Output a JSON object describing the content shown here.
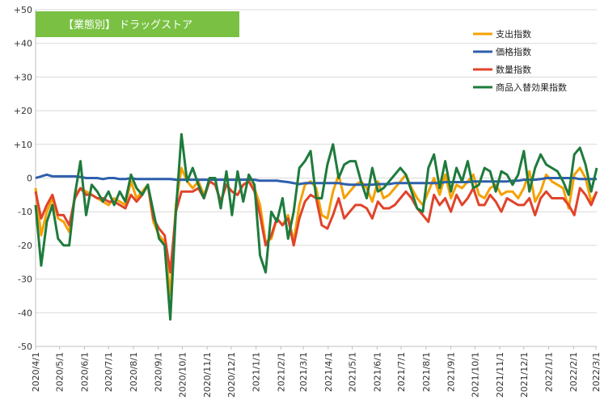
{
  "chart_data": {
    "type": "line",
    "title": "【業態別】 ドラッグストア",
    "title_bg_color": "#7AC143",
    "ylim": [
      -50,
      50
    ],
    "yticks": [
      50,
      40,
      30,
      20,
      10,
      0,
      -10,
      -20,
      -30,
      -40,
      -50
    ],
    "ytick_labels": [
      "+50",
      "+40",
      "+30",
      "+20",
      "+10",
      "0",
      "-10",
      "-20",
      "-30",
      "-40",
      "-50"
    ],
    "x_start": "2020-04-01",
    "x_interval_days": 7,
    "x_tick_labels": [
      "2020/4/1",
      "2020/5/1",
      "2020/6/1",
      "2020/7/1",
      "2020/8/1",
      "2020/9/1",
      "2020/10/1",
      "2020/11/1",
      "2020/12/1",
      "2021/1/1",
      "2021/2/1",
      "2021/3/1",
      "2021/4/1",
      "2021/5/1",
      "2021/6/1",
      "2021/7/1",
      "2021/8/1",
      "2021/9/1",
      "2021/10/1",
      "2021/11/1",
      "2021/12/1",
      "2022/1/1",
      "2022/2/1",
      "2022/3/1"
    ],
    "grid": true,
    "legend_position": "top-right",
    "series": [
      {
        "name": "支出指数",
        "color": "#F5A100",
        "values": [
          -3,
          -17,
          -10,
          -6,
          -12,
          -13,
          -16,
          -5,
          -3,
          -4,
          -5,
          -6,
          -7,
          -8,
          -6,
          -7,
          -8,
          -1,
          -6,
          -4,
          -2,
          -13,
          -17,
          -19,
          -35,
          -8,
          3,
          -1,
          -3,
          -1,
          -5,
          -1,
          -2,
          -7,
          -2,
          -4,
          -5,
          -2,
          -1,
          -3,
          -8,
          -19,
          -18,
          -12,
          -14,
          -11,
          -19,
          -8,
          -2,
          -1,
          -3,
          -11,
          -12,
          -4,
          1,
          -6,
          -4,
          -2,
          -1,
          -3,
          -7,
          -1,
          -6,
          -5,
          -3,
          -1,
          1,
          -3,
          -6,
          -8,
          -4,
          0,
          -5,
          1,
          -6,
          -2,
          -3,
          -1,
          1,
          -5,
          -6,
          -3,
          -2,
          -5,
          -4,
          -4,
          -6,
          -3,
          2,
          -7,
          -4,
          1,
          -1,
          -2,
          -3,
          -9,
          1,
          3,
          0,
          -7,
          -4
        ]
      },
      {
        "name": "価格指数",
        "color": "#2E5FAD",
        "values": [
          0,
          0.5,
          1,
          0.5,
          0.5,
          0.5,
          0.5,
          0.5,
          0.3,
          0,
          0,
          0,
          -0.3,
          0,
          0,
          -0.3,
          -0.3,
          0,
          -0.3,
          -0.3,
          -0.3,
          -0.3,
          -0.3,
          -0.3,
          -0.3,
          -0.5,
          -0.5,
          -0.5,
          -0.5,
          -0.5,
          -0.5,
          -0.5,
          -0.5,
          -0.5,
          -0.5,
          -0.5,
          -0.5,
          -0.5,
          -0.5,
          -0.5,
          -0.8,
          -0.8,
          -0.8,
          -0.8,
          -1,
          -1.2,
          -1.5,
          -1.8,
          -1.5,
          -1.5,
          -1.5,
          -1.5,
          -1.5,
          -1.5,
          -1.5,
          -1.8,
          -2,
          -2,
          -2,
          -2,
          -2,
          -1.8,
          -1.8,
          -1.8,
          -1.5,
          -1.5,
          -1.5,
          -1.5,
          -1.5,
          -1.5,
          -1.5,
          -1.5,
          -1.5,
          -1.2,
          -1.2,
          -1.2,
          -1.2,
          -1.2,
          -1,
          -1,
          -1,
          -1,
          -1,
          -1,
          -1,
          -0.8,
          -0.8,
          -0.5,
          -0.5,
          -0.5,
          -0.3,
          0,
          0,
          0,
          0,
          0,
          0,
          -0.3,
          -0.3,
          -0.3,
          -0.3
        ]
      },
      {
        "name": "数量指数",
        "color": "#E0442B",
        "values": [
          -4,
          -12,
          -8,
          -5,
          -11,
          -11,
          -14,
          -6,
          -3,
          -5,
          -5,
          -6,
          -6,
          -7,
          -7,
          -8,
          -9,
          -5,
          -7,
          -5,
          -2,
          -12,
          -15,
          -17,
          -28,
          -10,
          -4,
          -4,
          -4,
          -3,
          -6,
          -1,
          -2,
          -7,
          -2,
          -4,
          -5,
          -2,
          -1,
          -4,
          -11,
          -20,
          -17,
          -12,
          -14,
          -12,
          -20,
          -12,
          -7,
          -5,
          -6,
          -14,
          -15,
          -11,
          -6,
          -12,
          -10,
          -8,
          -8,
          -9,
          -12,
          -7,
          -9,
          -9,
          -8,
          -6,
          -4,
          -6,
          -9,
          -11,
          -13,
          -5,
          -8,
          -6,
          -10,
          -5,
          -8,
          -6,
          -3,
          -8,
          -8,
          -5,
          -7,
          -10,
          -6,
          -7,
          -8,
          -8,
          -6,
          -11,
          -6,
          -4,
          -6,
          -6,
          -6,
          -8,
          -11,
          -3,
          -5,
          -8,
          -4
        ]
      },
      {
        "name": "商品入替効果指数",
        "color": "#1E7B3C",
        "values": [
          -8,
          -26,
          -13,
          -8,
          -18,
          -20,
          -20,
          -5,
          5,
          -11,
          -2,
          -4,
          -7,
          -4,
          -8,
          -4,
          -7,
          1,
          -3,
          -5,
          -2,
          -10,
          -18,
          -20,
          -42,
          -10,
          13,
          -1,
          3,
          -2,
          -6,
          0,
          0,
          -9,
          2,
          -11,
          2,
          -7,
          1,
          -2,
          -23,
          -28,
          -10,
          -13,
          -6,
          -18,
          -10,
          3,
          5,
          8,
          -6,
          -6,
          4,
          10,
          0,
          4,
          5,
          5,
          -1,
          -6,
          3,
          -4,
          -3,
          -1,
          1,
          3,
          1,
          -4,
          -9,
          -10,
          3,
          7,
          -3,
          5,
          -4,
          3,
          -1,
          5,
          -3,
          -2,
          3,
          2,
          -4,
          2,
          1,
          -2,
          1,
          8,
          -4,
          3,
          7,
          4,
          3,
          2,
          -1,
          -5,
          7,
          9,
          4,
          -4,
          3
        ]
      }
    ]
  }
}
